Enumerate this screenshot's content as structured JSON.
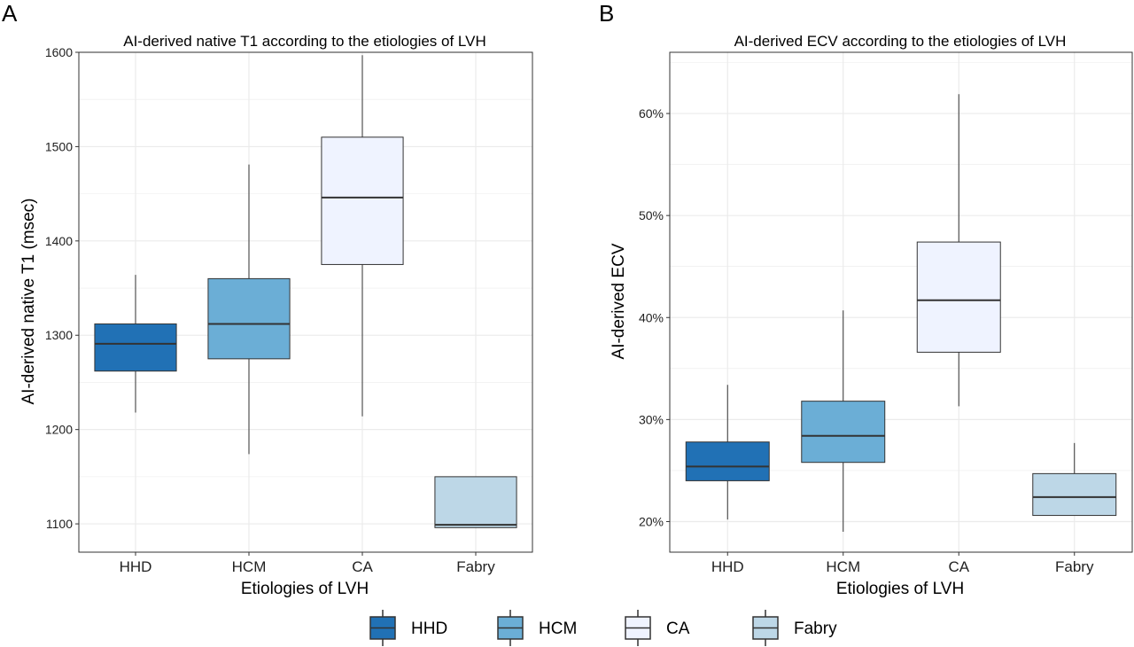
{
  "colors": {
    "HHD": "#2171b5",
    "HCM": "#6baed6",
    "CA": "#eff3ff",
    "Fabry": "#bdd7e7",
    "outline": "#333333",
    "grid": "#ebebeb",
    "panel_border": "#333333"
  },
  "legend": {
    "placement": "bottom",
    "items": [
      {
        "key": "HHD",
        "label": "HHD"
      },
      {
        "key": "HCM",
        "label": "HCM"
      },
      {
        "key": "CA",
        "label": "CA"
      },
      {
        "key": "Fabry",
        "label": "Fabry"
      }
    ]
  },
  "chart_data": [
    {
      "panel": "A",
      "type": "box",
      "title": "AI-derived native T1 according to the etiologies of LVH",
      "xlabel": "Etiologies of LVH",
      "ylabel": "AI-derived native T1 (msec)",
      "ylim": [
        1070,
        1600
      ],
      "yticks": [
        1100,
        1200,
        1300,
        1400,
        1500,
        1600
      ],
      "ytick_labels": [
        "1100",
        "1200",
        "1300",
        "1400",
        "1500",
        "1600"
      ],
      "grid": true,
      "categories": [
        "HHD",
        "HCM",
        "CA",
        "Fabry"
      ],
      "boxes": [
        {
          "category": "HHD",
          "min": 1218,
          "q1": 1262,
          "median": 1291,
          "q3": 1312,
          "max": 1364
        },
        {
          "category": "HCM",
          "min": 1174,
          "q1": 1275,
          "median": 1312,
          "q3": 1360,
          "max": 1481
        },
        {
          "category": "CA",
          "min": 1214,
          "q1": 1375,
          "median": 1446,
          "q3": 1510,
          "max": 1597
        },
        {
          "category": "Fabry",
          "min": 1096,
          "q1": 1096,
          "median": 1099,
          "q3": 1150,
          "max": 1150
        }
      ]
    },
    {
      "panel": "B",
      "type": "box",
      "title": "AI-derived ECV according to the etiologies of LVH",
      "xlabel": "Etiologies of LVH",
      "ylabel": "AI-derived ECV",
      "ylim": [
        17.0,
        66.0
      ],
      "yticks": [
        20,
        30,
        40,
        50,
        60
      ],
      "ytick_labels": [
        "20%",
        "30%",
        "40%",
        "50%",
        "60%"
      ],
      "grid": true,
      "categories": [
        "HHD",
        "HCM",
        "CA",
        "Fabry"
      ],
      "boxes": [
        {
          "category": "HHD",
          "min": 20.2,
          "q1": 24.0,
          "median": 25.4,
          "q3": 27.8,
          "max": 33.4
        },
        {
          "category": "HCM",
          "min": 19.0,
          "q1": 25.8,
          "median": 28.4,
          "q3": 31.8,
          "max": 40.7
        },
        {
          "category": "CA",
          "min": 31.3,
          "q1": 36.6,
          "median": 41.7,
          "q3": 47.4,
          "max": 61.9
        },
        {
          "category": "Fabry",
          "min": 20.6,
          "q1": 20.6,
          "median": 22.4,
          "q3": 24.7,
          "max": 27.7
        }
      ]
    }
  ]
}
